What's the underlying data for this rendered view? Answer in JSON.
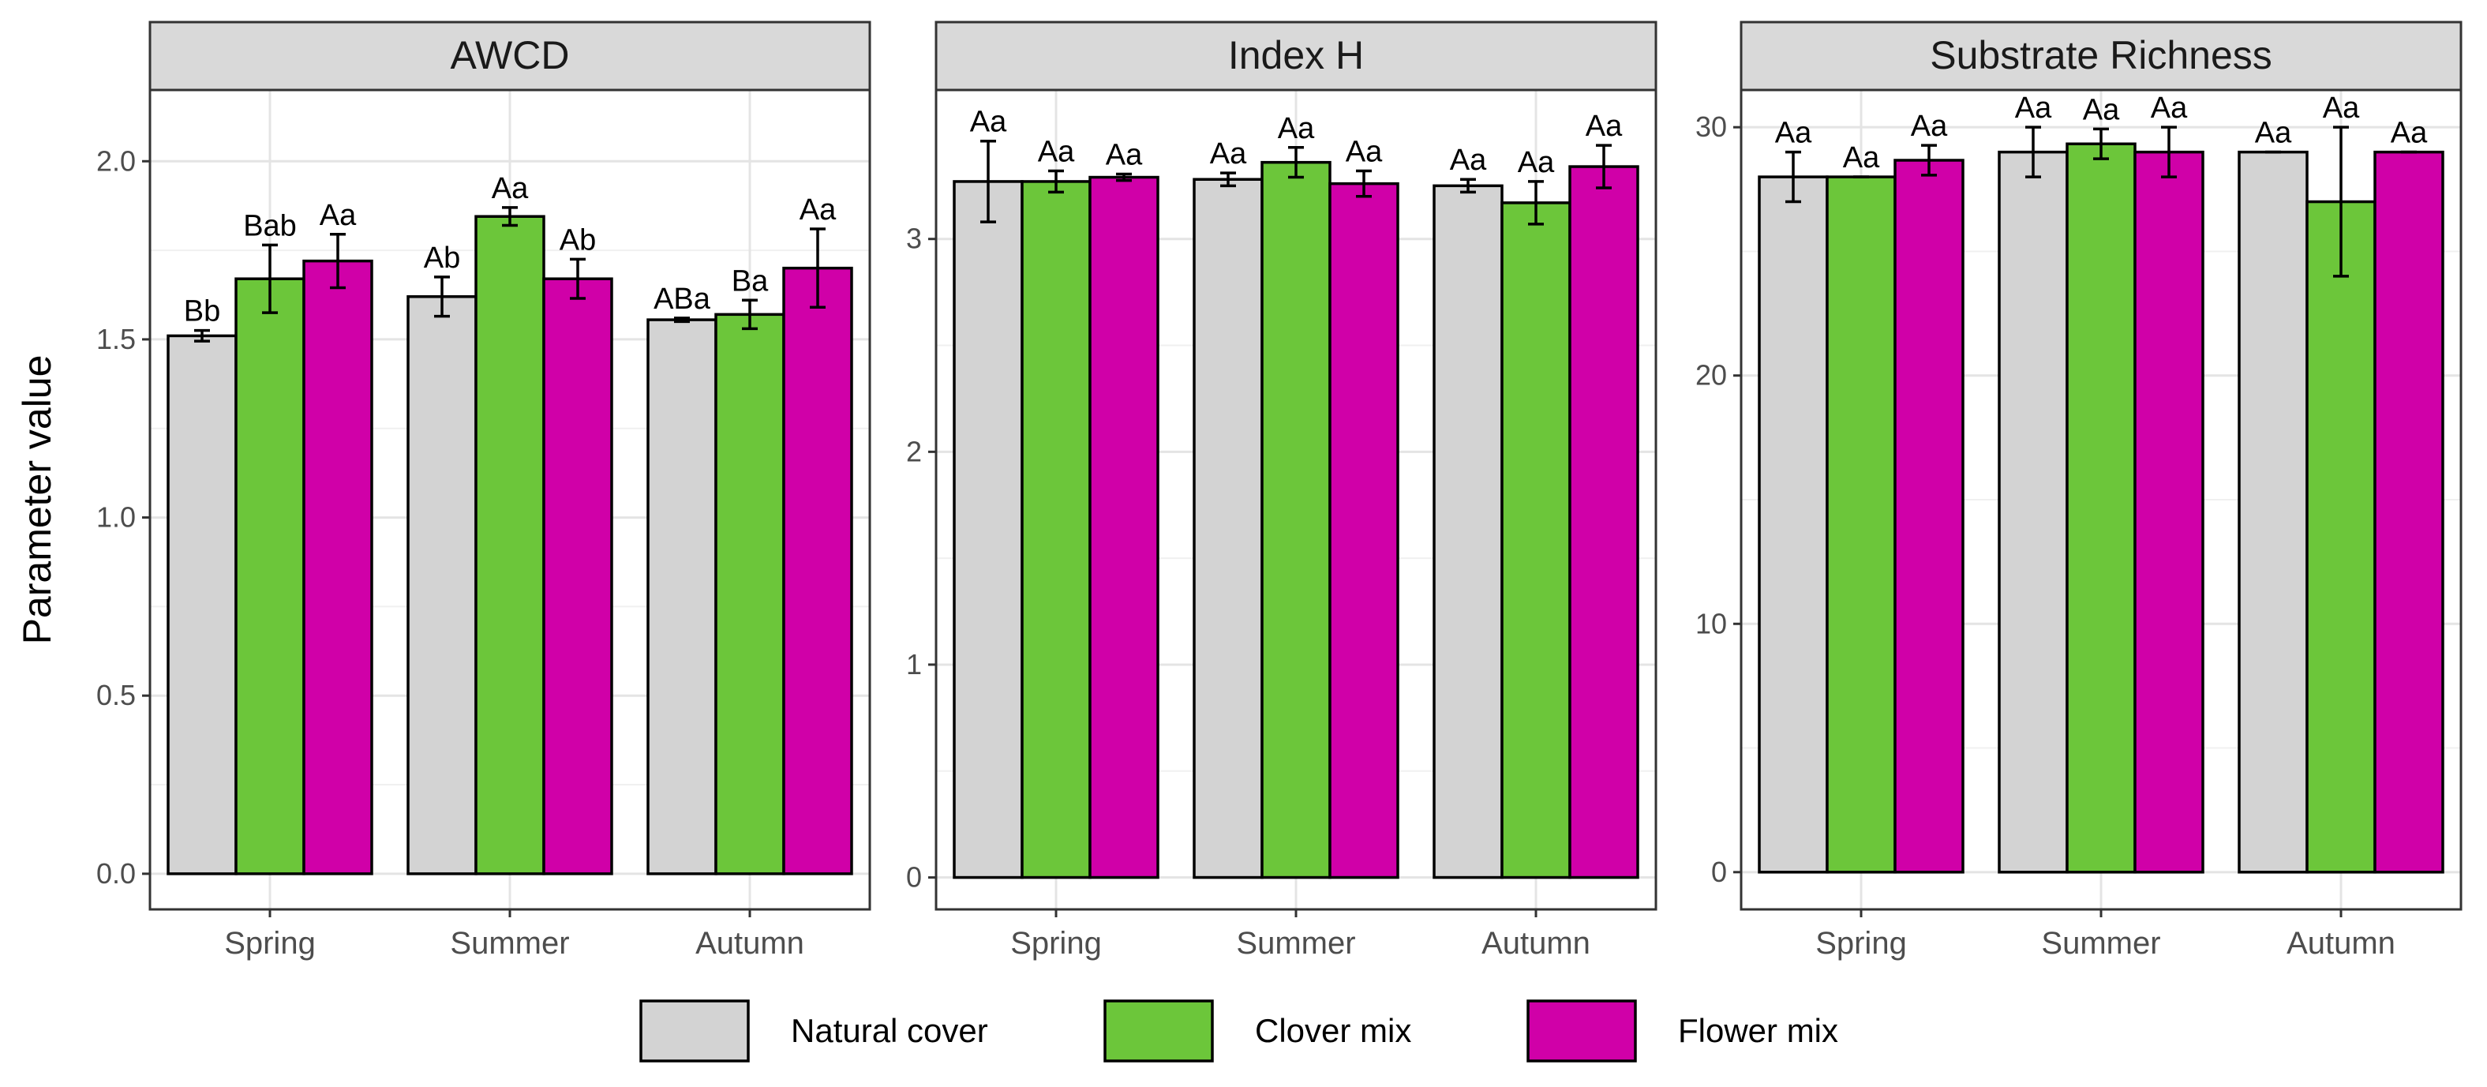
{
  "chart_data": {
    "type": "bar",
    "ylabel": "Parameter value",
    "categories": [
      "Spring",
      "Summer",
      "Autumn"
    ],
    "legend": [
      {
        "name": "Natural cover",
        "color": "#d3d3d3"
      },
      {
        "name": "Clover mix",
        "color": "#6cc63a"
      },
      {
        "name": "Flower mix",
        "color": "#d000a8"
      }
    ],
    "panels": [
      {
        "title": "AWCD",
        "ylim": [
          -0.1,
          2.2
        ],
        "yticks": [
          0.0,
          0.5,
          1.0,
          1.5,
          2.0
        ],
        "ytick_labels": [
          "0.0",
          "0.5",
          "1.0",
          "1.5",
          "2.0"
        ],
        "series": [
          {
            "name": "Natural cover",
            "values": [
              1.51,
              1.62,
              1.555
            ],
            "errors": [
              0.015,
              0.055,
              0.005
            ],
            "labels": [
              "Bb",
              "Ab",
              "ABa"
            ]
          },
          {
            "name": "Clover mix",
            "values": [
              1.67,
              1.845,
              1.57
            ],
            "errors": [
              0.095,
              0.025,
              0.04
            ],
            "labels": [
              "Bab",
              "Aa",
              "Ba"
            ]
          },
          {
            "name": "Flower mix",
            "values": [
              1.72,
              1.67,
              1.7
            ],
            "errors": [
              0.075,
              0.055,
              0.11
            ],
            "labels": [
              "Aa",
              "Ab",
              "Aa"
            ]
          }
        ]
      },
      {
        "title": "Index H",
        "ylim": [
          -0.15,
          3.7
        ],
        "yticks": [
          0,
          1,
          2,
          3
        ],
        "ytick_labels": [
          "0",
          "1",
          "2",
          "3"
        ],
        "series": [
          {
            "name": "Natural cover",
            "values": [
              3.27,
              3.28,
              3.25
            ],
            "errors": [
              0.19,
              0.03,
              0.03
            ],
            "labels": [
              "Aa",
              "Aa",
              "Aa"
            ]
          },
          {
            "name": "Clover mix",
            "values": [
              3.27,
              3.36,
              3.17
            ],
            "errors": [
              0.05,
              0.07,
              0.1
            ],
            "labels": [
              "Aa",
              "Aa",
              "Aa"
            ]
          },
          {
            "name": "Flower mix",
            "values": [
              3.29,
              3.26,
              3.34
            ],
            "errors": [
              0.015,
              0.06,
              0.1
            ],
            "labels": [
              "Aa",
              "Aa",
              "Aa"
            ]
          }
        ]
      },
      {
        "title": "Substrate Richness",
        "ylim": [
          -1.5,
          31.5
        ],
        "yticks": [
          0,
          10,
          20,
          30
        ],
        "ytick_labels": [
          "0",
          "10",
          "20",
          "30"
        ],
        "series": [
          {
            "name": "Natural cover",
            "values": [
              28,
              29,
              29
            ],
            "errors": [
              1,
              1,
              0
            ],
            "labels": [
              "Aa",
              "Aa",
              "Aa"
            ]
          },
          {
            "name": "Clover mix",
            "values": [
              28,
              29.33,
              27
            ],
            "errors": [
              0,
              0.6,
              3
            ],
            "labels": [
              "Aa",
              "Aa",
              "Aa"
            ]
          },
          {
            "name": "Flower mix",
            "values": [
              28.67,
              29,
              29
            ],
            "errors": [
              0.6,
              1,
              0
            ],
            "labels": [
              "Aa",
              "Aa",
              "Aa"
            ]
          }
        ]
      }
    ]
  }
}
